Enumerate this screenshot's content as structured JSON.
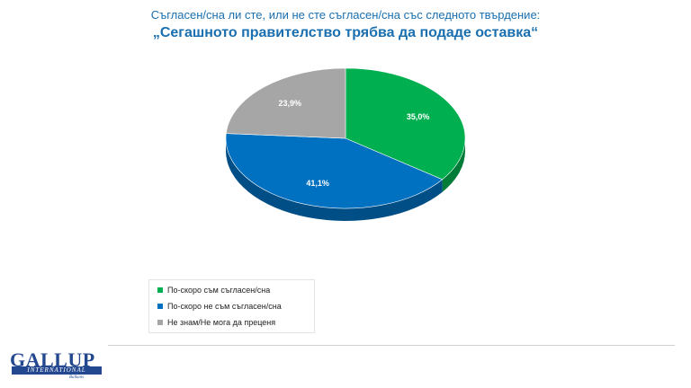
{
  "header": {
    "question": "Съгласен/сна ли сте, или не сте съгласен/сна със следното твърдение:",
    "statement": "„Сегашното правителство трябва да подаде оставка“"
  },
  "chart_data": {
    "type": "pie",
    "title": "„Сегашното правителство трябва да подаде оставка“",
    "slices": [
      {
        "label": "По-скоро съм съгласен/сна",
        "value": 35.0,
        "display": "35,0%",
        "color": "#00b050"
      },
      {
        "label": "По-скоро не съм съгласен/сна",
        "value": 41.1,
        "display": "41,1%",
        "color": "#0070c0"
      },
      {
        "label": "Не знам/Не мога да преценя",
        "value": 23.9,
        "display": "23,9%",
        "color": "#a6a6a6"
      }
    ],
    "legend_position": "bottom-left"
  },
  "logo": {
    "main": "GALLUP",
    "sub": "INTERNATIONAL",
    "region": "Balkans"
  }
}
